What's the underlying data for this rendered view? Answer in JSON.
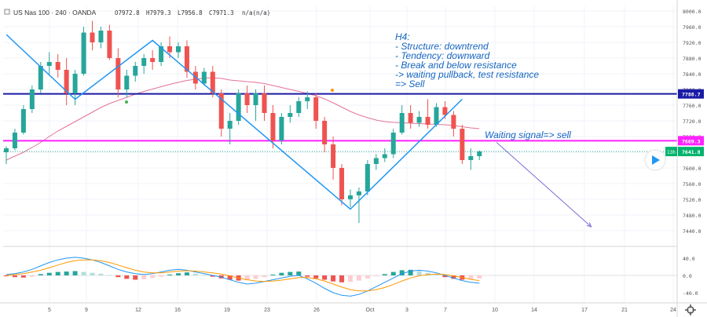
{
  "header": {
    "symbol": "US Nas 100 · 240 · OANDA",
    "open": "O7972.8",
    "high": "H7979.3",
    "low": "L7956.8",
    "close": "C7971.3",
    "na": "n/a(n/a)"
  },
  "annotation": {
    "lines": [
      "H4:",
      "- Structure: downtrend",
      "- Tendency: downward",
      "- Break and below resistance",
      "-> waiting pullback, test resistance",
      "=> Sell"
    ],
    "signal": "Waiting signal=> sell"
  },
  "colors": {
    "bull": "#26a69a",
    "bear": "#ef5350",
    "resistance": "#1a1aa6",
    "support": "#ff22ff",
    "zigzag": "#2196f3",
    "ma": "#e57399",
    "macd": "#2196f3",
    "signal_line": "#ff9800",
    "text": "#1565c0"
  },
  "chart_data": [
    {
      "type": "candlestick",
      "price_axis": {
        "ticks": [
          "8000.0",
          "7960.0",
          "7920.0",
          "7880.0",
          "7840.0",
          "7800.0",
          "7760.0",
          "7720.0",
          "7680.0",
          "7640.0",
          "7600.0",
          "7560.0",
          "7520.0",
          "7480.0",
          "7440.0"
        ],
        "range": [
          7420,
          8000
        ]
      },
      "x_labels": [
        "5",
        "9",
        "12",
        "16",
        "19",
        "23",
        "26",
        "Oct",
        "3",
        "7",
        "10",
        "14",
        "17",
        "21",
        "24"
      ],
      "levels": [
        {
          "name": "resistance",
          "price": 7788.7,
          "label": "7788.7"
        },
        {
          "name": "support",
          "price": 7669.3,
          "label": "7669.3"
        },
        {
          "name": "current",
          "price": 7641.8,
          "label": "7641.8",
          "countdown": "13h"
        }
      ],
      "zigzag": [
        {
          "x": 0,
          "price": 7940
        },
        {
          "x": 8,
          "price": 7775
        },
        {
          "x": 17,
          "price": 7925
        },
        {
          "x": 40,
          "price": 7495
        },
        {
          "x": 53,
          "price": 7775
        }
      ],
      "projection": [
        {
          "x": 57,
          "price": 7665
        },
        {
          "x": 68,
          "price": 7450
        }
      ],
      "candles": [
        {
          "o": 7640,
          "h": 7655,
          "l": 7610,
          "c": 7650
        },
        {
          "o": 7650,
          "h": 7700,
          "l": 7645,
          "c": 7690
        },
        {
          "o": 7690,
          "h": 7760,
          "l": 7685,
          "c": 7750
        },
        {
          "o": 7750,
          "h": 7810,
          "l": 7740,
          "c": 7800
        },
        {
          "o": 7800,
          "h": 7870,
          "l": 7790,
          "c": 7860
        },
        {
          "o": 7860,
          "h": 7895,
          "l": 7835,
          "c": 7870
        },
        {
          "o": 7870,
          "h": 7890,
          "l": 7830,
          "c": 7850
        },
        {
          "o": 7850,
          "h": 7880,
          "l": 7760,
          "c": 7790
        },
        {
          "o": 7790,
          "h": 7850,
          "l": 7760,
          "c": 7840
        },
        {
          "o": 7840,
          "h": 7960,
          "l": 7835,
          "c": 7945
        },
        {
          "o": 7945,
          "h": 7975,
          "l": 7900,
          "c": 7920
        },
        {
          "o": 7920,
          "h": 7960,
          "l": 7905,
          "c": 7950
        },
        {
          "o": 7950,
          "h": 7965,
          "l": 7875,
          "c": 7880
        },
        {
          "o": 7880,
          "h": 7905,
          "l": 7780,
          "c": 7800
        },
        {
          "o": 7800,
          "h": 7850,
          "l": 7780,
          "c": 7835
        },
        {
          "o": 7835,
          "h": 7870,
          "l": 7820,
          "c": 7860
        },
        {
          "o": 7860,
          "h": 7890,
          "l": 7840,
          "c": 7880
        },
        {
          "o": 7880,
          "h": 7900,
          "l": 7850,
          "c": 7870
        },
        {
          "o": 7870,
          "h": 7920,
          "l": 7860,
          "c": 7910
        },
        {
          "o": 7910,
          "h": 7935,
          "l": 7880,
          "c": 7895
        },
        {
          "o": 7895,
          "h": 7920,
          "l": 7880,
          "c": 7910
        },
        {
          "o": 7910,
          "h": 7925,
          "l": 7830,
          "c": 7845
        },
        {
          "o": 7845,
          "h": 7860,
          "l": 7800,
          "c": 7815
        },
        {
          "o": 7815,
          "h": 7855,
          "l": 7810,
          "c": 7845
        },
        {
          "o": 7845,
          "h": 7860,
          "l": 7780,
          "c": 7790
        },
        {
          "o": 7790,
          "h": 7800,
          "l": 7680,
          "c": 7700
        },
        {
          "o": 7700,
          "h": 7740,
          "l": 7660,
          "c": 7720
        },
        {
          "o": 7720,
          "h": 7800,
          "l": 7710,
          "c": 7790
        },
        {
          "o": 7790,
          "h": 7810,
          "l": 7740,
          "c": 7760
        },
        {
          "o": 7760,
          "h": 7800,
          "l": 7720,
          "c": 7790
        },
        {
          "o": 7790,
          "h": 7810,
          "l": 7720,
          "c": 7740
        },
        {
          "o": 7740,
          "h": 7760,
          "l": 7650,
          "c": 7670
        },
        {
          "o": 7670,
          "h": 7740,
          "l": 7660,
          "c": 7730
        },
        {
          "o": 7730,
          "h": 7760,
          "l": 7715,
          "c": 7740
        },
        {
          "o": 7740,
          "h": 7780,
          "l": 7730,
          "c": 7770
        },
        {
          "o": 7770,
          "h": 7795,
          "l": 7750,
          "c": 7780
        },
        {
          "o": 7780,
          "h": 7790,
          "l": 7700,
          "c": 7720
        },
        {
          "o": 7720,
          "h": 7730,
          "l": 7640,
          "c": 7660
        },
        {
          "o": 7660,
          "h": 7680,
          "l": 7570,
          "c": 7600
        },
        {
          "o": 7600,
          "h": 7610,
          "l": 7505,
          "c": 7520
        },
        {
          "o": 7520,
          "h": 7545,
          "l": 7500,
          "c": 7530
        },
        {
          "o": 7530,
          "h": 7550,
          "l": 7460,
          "c": 7540
        },
        {
          "o": 7540,
          "h": 7620,
          "l": 7530,
          "c": 7610
        },
        {
          "o": 7610,
          "h": 7635,
          "l": 7595,
          "c": 7625
        },
        {
          "o": 7625,
          "h": 7650,
          "l": 7615,
          "c": 7635
        },
        {
          "o": 7635,
          "h": 7700,
          "l": 7625,
          "c": 7690
        },
        {
          "o": 7690,
          "h": 7760,
          "l": 7685,
          "c": 7740
        },
        {
          "o": 7740,
          "h": 7760,
          "l": 7700,
          "c": 7715
        },
        {
          "o": 7715,
          "h": 7745,
          "l": 7705,
          "c": 7730
        },
        {
          "o": 7730,
          "h": 7775,
          "l": 7700,
          "c": 7710
        },
        {
          "o": 7710,
          "h": 7765,
          "l": 7705,
          "c": 7755
        },
        {
          "o": 7755,
          "h": 7770,
          "l": 7725,
          "c": 7735
        },
        {
          "o": 7735,
          "h": 7745,
          "l": 7680,
          "c": 7700
        },
        {
          "o": 7700,
          "h": 7710,
          "l": 7610,
          "c": 7620
        },
        {
          "o": 7620,
          "h": 7650,
          "l": 7595,
          "c": 7630
        },
        {
          "o": 7630,
          "h": 7645,
          "l": 7620,
          "c": 7642
        }
      ],
      "ma": [
        7620,
        7630,
        7640,
        7652,
        7665,
        7680,
        7694,
        7706,
        7718,
        7730,
        7742,
        7754,
        7764,
        7772,
        7780,
        7788,
        7795,
        7801,
        7807,
        7813,
        7818,
        7823,
        7826,
        7829,
        7830,
        7828,
        7824,
        7822,
        7820,
        7818,
        7815,
        7810,
        7805,
        7800,
        7795,
        7790,
        7784,
        7776,
        7766,
        7755,
        7744,
        7735,
        7728,
        7722,
        7718,
        7716,
        7715,
        7714,
        7713,
        7712,
        7711,
        7710,
        7708,
        7705,
        7702,
        7700
      ]
    },
    {
      "type": "macd",
      "axis_ticks": [
        "40.0",
        "0.0",
        "-40.0"
      ],
      "range": [
        -60,
        60
      ],
      "histogram": [
        -2,
        -4,
        -5,
        -3,
        3,
        6,
        8,
        9,
        10,
        8,
        6,
        4,
        1,
        -4,
        -8,
        -10,
        -9,
        -6,
        -3,
        2,
        5,
        7,
        4,
        1,
        -3,
        -7,
        -10,
        -12,
        -11,
        -8,
        -4,
        2,
        6,
        8,
        9,
        -3,
        -7,
        -10,
        -14,
        -16,
        -15,
        -12,
        -7,
        -2,
        3,
        8,
        12,
        13,
        10,
        6,
        1,
        -4,
        -8,
        -10,
        -9,
        -7
      ],
      "macd": [
        2,
        4,
        8,
        14,
        22,
        30,
        36,
        40,
        42,
        40,
        36,
        30,
        22,
        14,
        8,
        4,
        2,
        4,
        8,
        12,
        14,
        12,
        8,
        4,
        0,
        -4,
        -10,
        -16,
        -20,
        -18,
        -14,
        -10,
        -6,
        -2,
        0,
        -8,
        -18,
        -30,
        -40,
        -46,
        -48,
        -44,
        -36,
        -26,
        -16,
        -6,
        4,
        10,
        12,
        10,
        6,
        0,
        -6,
        -12,
        -16,
        -18
      ],
      "signal": [
        0,
        2,
        4,
        8,
        12,
        18,
        24,
        30,
        34,
        36,
        36,
        34,
        30,
        24,
        18,
        12,
        8,
        6,
        6,
        8,
        10,
        11,
        10,
        8,
        6,
        3,
        -1,
        -6,
        -10,
        -13,
        -14,
        -13,
        -11,
        -8,
        -5,
        -5,
        -8,
        -13,
        -20,
        -27,
        -33,
        -36,
        -36,
        -33,
        -28,
        -21,
        -13,
        -6,
        -1,
        2,
        3,
        2,
        -1,
        -5,
        -9,
        -12
      ]
    }
  ]
}
